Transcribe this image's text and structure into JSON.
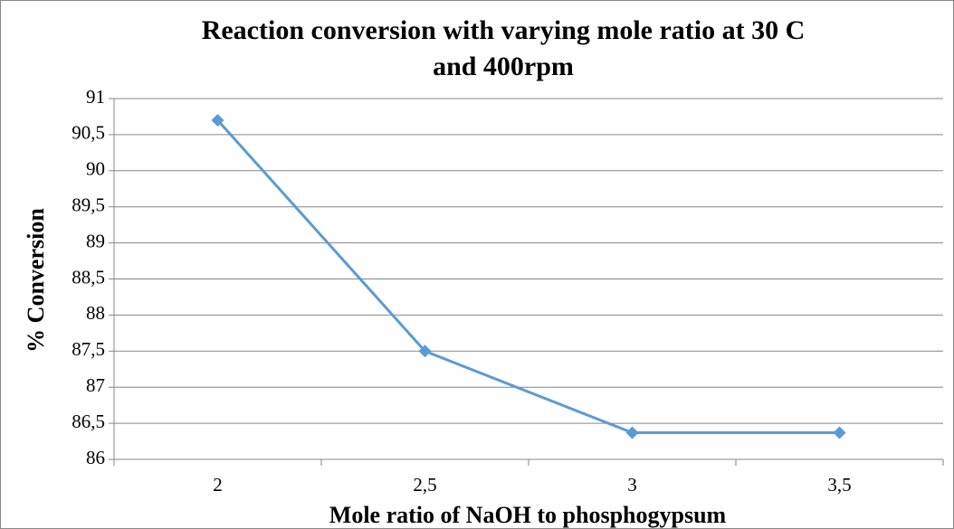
{
  "chart_data": {
    "type": "line",
    "title": [
      "Reaction conversion with varying mole ratio at 30 C",
      "and 400rpm"
    ],
    "x_label": "Mole ratio of NaOH to phosphogypsum",
    "y_label": "% Conversion",
    "categories": [
      "2",
      "2,5",
      "3",
      "3,5"
    ],
    "series": [
      {
        "name": "% Conversion",
        "color": "#5b9bd5",
        "values": [
          90.7,
          87.5,
          86.37,
          86.37
        ]
      }
    ],
    "ylim": [
      86,
      91
    ],
    "yticks": [
      86,
      {
        "value": 86.5,
        "label": "86,5"
      },
      87,
      {
        "value": 87.5,
        "label": "87,5"
      },
      88,
      {
        "value": 88.5,
        "label": "88,5"
      },
      89,
      {
        "value": 89.5,
        "label": "89,5"
      },
      90,
      {
        "value": 90.5,
        "label": "90,5"
      },
      91
    ],
    "grid": true
  }
}
